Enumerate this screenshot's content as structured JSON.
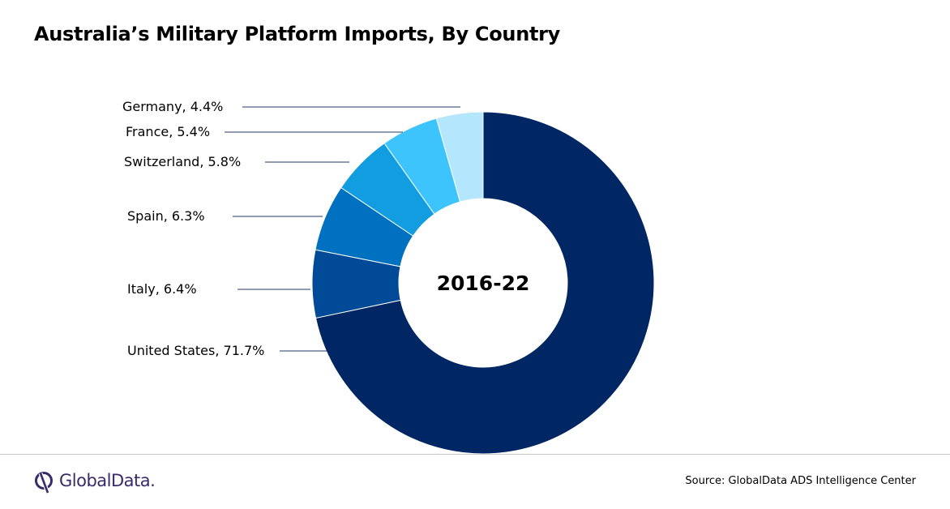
{
  "title": "Australia’s Military Platform Imports, By Country",
  "chart_data": {
    "type": "pie",
    "donut": true,
    "center_label": "2016-22",
    "unit": "%",
    "categories": [
      "United States",
      "Italy",
      "Spain",
      "Switzerland",
      "France",
      "Germany"
    ],
    "values": [
      71.7,
      6.4,
      6.3,
      5.8,
      5.4,
      4.4
    ],
    "data_labels": [
      "United States, 71.7%",
      "Italy, 6.4%",
      "Spain, 6.3%",
      "Switzerland, 5.8%",
      "France, 5.4%",
      "Germany, 4.4%"
    ],
    "colors": [
      "#002664",
      "#004a97",
      "#0070c0",
      "#129de0",
      "#3ec4fc",
      "#b4e6fd"
    ],
    "legend": "none",
    "label_placement": "left with leader lines"
  },
  "footer": {
    "logo_text": "GlobalData.",
    "source": "Source:  GlobalData ADS Intelligence Center"
  },
  "colors": {
    "logo": "#3b2a6b",
    "leader_line": "#1f3864"
  }
}
